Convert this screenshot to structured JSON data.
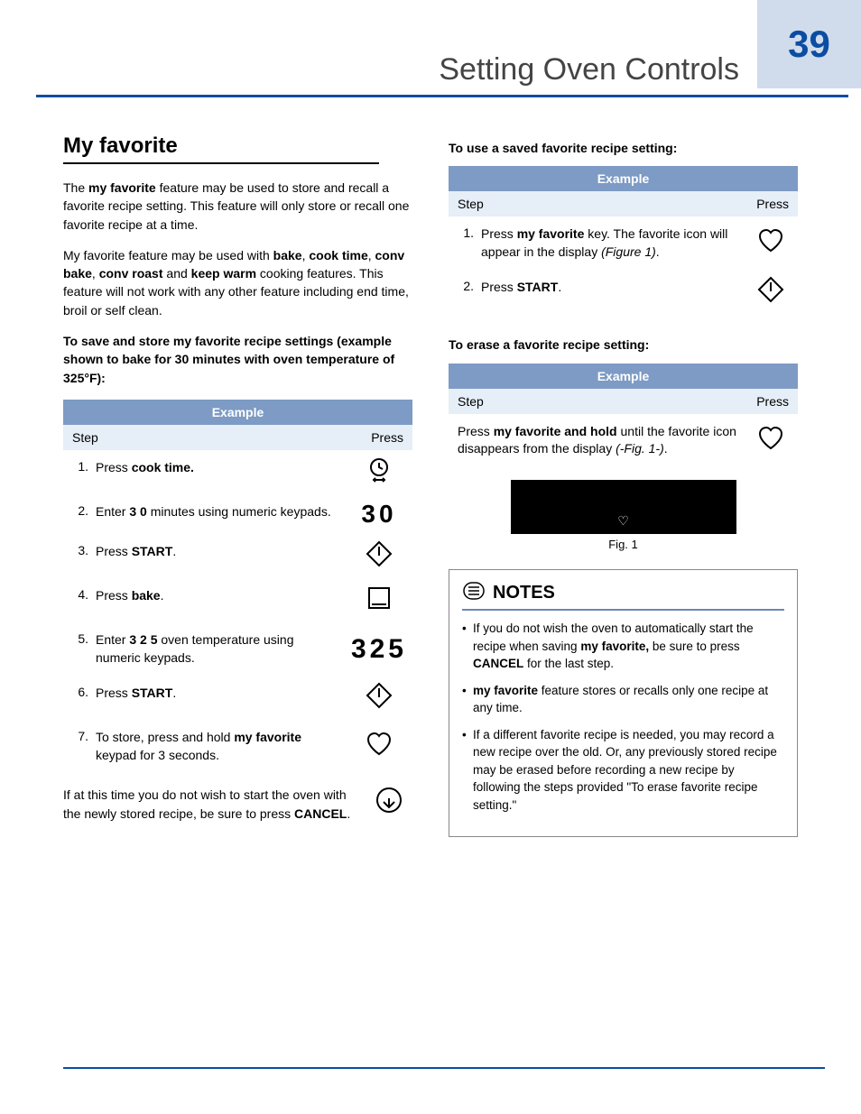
{
  "page": {
    "title": "Setting Oven Controls",
    "number": "39"
  },
  "section": {
    "title": "My favorite",
    "intro1_a": "The ",
    "intro1_b": "my favorite",
    "intro1_c": " feature may be used to store and recall a favorite recipe setting. This feature will only store or recall one favorite recipe at a time.",
    "intro2_a": "My favorite feature may be used with ",
    "intro2_b": "bake",
    "intro2_c": ", ",
    "intro2_d": "cook time",
    "intro2_e": ", ",
    "intro2_f": "conv bake",
    "intro2_g": ", ",
    "intro2_h": "conv roast",
    "intro2_i": " and ",
    "intro2_j": "keep warm",
    "intro2_k": " cooking features. This feature will not work with any other feature including end time, broil or self clean.",
    "save_heading": "To save and store my favorite recipe settings (example shown to bake for 30 minutes with oven temperature of 325°F):",
    "use_heading": "To use a saved favorite recipe setting:",
    "erase_heading": "To erase a favorite recipe setting:",
    "footer_a": "If at this time you do not wish to start the oven with the newly stored recipe, be sure to press ",
    "footer_b": "CANCEL",
    "footer_c": "."
  },
  "table": {
    "example_label": "Example",
    "step_label": "Step",
    "press_label": "Press"
  },
  "save_steps": [
    {
      "n": "1.",
      "a": "Press ",
      "b": "cook time.",
      "c": "",
      "icon": "cooktime"
    },
    {
      "n": "2.",
      "a": "Enter ",
      "b": "3 0",
      "c": " minutes using numeric keypads.",
      "icon": "num30"
    },
    {
      "n": "3.",
      "a": "Press ",
      "b": "START",
      "c": ".",
      "icon": "start"
    },
    {
      "n": "4.",
      "a": "Press ",
      "b": "bake",
      "c": ".",
      "icon": "bake"
    },
    {
      "n": "5.",
      "a": "Enter ",
      "b": "3 2 5",
      "c": " oven temperature using numeric keypads.",
      "icon": "num325"
    },
    {
      "n": "6.",
      "a": "Press ",
      "b": "START",
      "c": ".",
      "icon": "start"
    },
    {
      "n": "7.",
      "a": "To store, press and hold ",
      "b": "my favorite",
      "c": " keypad for 3 seconds.",
      "icon": "heart"
    }
  ],
  "use_steps": [
    {
      "n": "1.",
      "a": "Press ",
      "b": "my favorite",
      "c": " key. The favorite icon will appear in the display ",
      "d": "(Figure 1)",
      "e": ".",
      "icon": "heart"
    },
    {
      "n": "2.",
      "a": "Press ",
      "b": "START",
      "c": ".",
      "d": "",
      "e": "",
      "icon": "start"
    }
  ],
  "erase_steps": [
    {
      "a": "Press ",
      "b": "my favorite and hold",
      "c": " until the favorite icon disappears from the display ",
      "d": "(-Fig. 1-)",
      "e": ".",
      "icon": "heart"
    }
  ],
  "figure": {
    "label": "Fig. 1"
  },
  "notes": {
    "title": "NOTES",
    "items": [
      {
        "a": "If you do not wish the oven to automatically start the recipe when saving ",
        "b": "my favorite,",
        "c": " be sure to press ",
        "d": "CANCEL",
        "e": " for the last step."
      },
      {
        "a": "",
        "b": "my favorite",
        "c": " feature stores or recalls only one recipe at any time.",
        "d": "",
        "e": ""
      },
      {
        "a": "If a different favorite recipe is needed, you may record a new recipe over the old. Or, any previously stored recipe may be erased before recording a new recipe by following the steps provided \"To erase favorite recipe setting.\"",
        "b": "",
        "c": "",
        "d": "",
        "e": ""
      }
    ]
  },
  "colors": {
    "accent": "#0b4da2",
    "table_header": "#7d9bc4",
    "table_sub": "#e6eef7",
    "side_tab": "#d0dcec"
  }
}
